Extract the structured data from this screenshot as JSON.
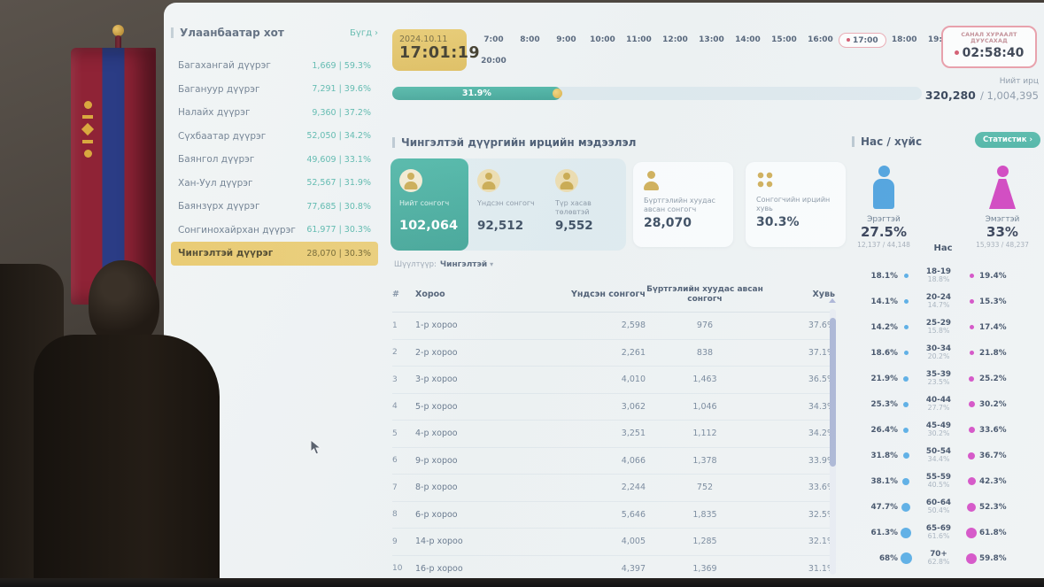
{
  "icons": {
    "chevron_right": "›",
    "dropdown": "▾"
  },
  "colors": {
    "accent_teal": "#45b3a4",
    "gold": "#e4c25f",
    "male_blue": "#4aa0dd",
    "female_pink": "#cf3fbe",
    "alert_red": "#d2556b"
  },
  "sidebar": {
    "title": "Улаанбаатар хот",
    "all_link": "Бүгд",
    "districts": [
      {
        "name": "Багахангай дүүрэг",
        "value": "1,669 | 59.3%"
      },
      {
        "name": "Багануур дүүрэг",
        "value": "7,291 | 39.6%"
      },
      {
        "name": "Налайх дүүрэг",
        "value": "9,360 | 37.2%"
      },
      {
        "name": "Сүхбаатар дүүрэг",
        "value": "52,050 | 34.2%"
      },
      {
        "name": "Баянгол дүүрэг",
        "value": "49,609 | 33.1%"
      },
      {
        "name": "Хан-Уул дүүрэг",
        "value": "52,567 | 31.9%"
      },
      {
        "name": "Баянзүрх дүүрэг",
        "value": "77,685 | 30.8%"
      },
      {
        "name": "Сонгинохайрхан дүүрэг",
        "value": "61,977 | 30.3%"
      },
      {
        "name": "Чингэлтэй дүүрэг",
        "value": "28,070 | 30.3%",
        "selected": true
      }
    ]
  },
  "header": {
    "date": "2024.10.11",
    "time": "17:01:19",
    "countdown_label": "САНАЛ ХУРААЛТ ДУУСАХАД",
    "countdown_value": "02:58:40"
  },
  "timeline": {
    "hours": [
      {
        "label": "7:00"
      },
      {
        "label": "8:00"
      },
      {
        "label": "9:00"
      },
      {
        "label": "10:00"
      },
      {
        "label": "11:00"
      },
      {
        "label": "12:00"
      },
      {
        "label": "13:00"
      },
      {
        "label": "14:00"
      },
      {
        "label": "15:00"
      },
      {
        "label": "16:00"
      },
      {
        "label": "17:00",
        "active": true
      },
      {
        "label": "18:00"
      },
      {
        "label": "19:00"
      },
      {
        "label": "20:00"
      }
    ]
  },
  "progress": {
    "pct": "31.9%"
  },
  "turnout": {
    "label": "Нийт ирц",
    "value": "320,280",
    "total": "/ 1,004,395"
  },
  "section": {
    "title": "Чингэлтэй дүүргийн ирцийн мэдээлэл"
  },
  "stats": {
    "primary": [
      {
        "label": "Нийт сонгогч",
        "value": "102,064",
        "selected": true
      },
      {
        "label": "Үндсэн сонгогч",
        "value": "92,512"
      },
      {
        "label": "Түр хасав төлөвтэй",
        "value": "9,552"
      }
    ],
    "secondary": [
      {
        "label": "Бүртгэлийн хуудас авсан сонгогч",
        "value": "28,070"
      },
      {
        "label": "Сонгогчийн ирцийн хувь",
        "value": "30.3%"
      }
    ]
  },
  "filter": {
    "label": "Шүүлтүүр:",
    "value": "Чингэлтэй"
  },
  "table": {
    "headers": {
      "num": "#",
      "name": "Хороо",
      "main": "Үндсэн сонгогч",
      "taken": "Бүртгэлийн хуудас авсан сонгогч",
      "pct": "Хувь"
    },
    "rows": [
      {
        "num": "1",
        "name": "1-р хороо",
        "main": "2,598",
        "taken": "976",
        "pct": "37.6%"
      },
      {
        "num": "2",
        "name": "2-р хороо",
        "main": "2,261",
        "taken": "838",
        "pct": "37.1%"
      },
      {
        "num": "3",
        "name": "3-р хороо",
        "main": "4,010",
        "taken": "1,463",
        "pct": "36.5%"
      },
      {
        "num": "4",
        "name": "5-р хороо",
        "main": "3,062",
        "taken": "1,046",
        "pct": "34.3%"
      },
      {
        "num": "5",
        "name": "4-р хороо",
        "main": "3,251",
        "taken": "1,112",
        "pct": "34.2%"
      },
      {
        "num": "6",
        "name": "9-р хороо",
        "main": "4,066",
        "taken": "1,378",
        "pct": "33.9%"
      },
      {
        "num": "7",
        "name": "8-р хороо",
        "main": "2,244",
        "taken": "752",
        "pct": "33.6%"
      },
      {
        "num": "8",
        "name": "6-р хороо",
        "main": "5,646",
        "taken": "1,835",
        "pct": "32.5%"
      },
      {
        "num": "9",
        "name": "14-р хороо",
        "main": "4,005",
        "taken": "1,285",
        "pct": "32.1%"
      },
      {
        "num": "10",
        "name": "16-р хороо",
        "main": "4,397",
        "taken": "1,369",
        "pct": "31.1%"
      }
    ]
  },
  "demo": {
    "title": "Нас / хүйс",
    "stats_button": "Статистик",
    "age_label": "Нас",
    "male": {
      "label": "Эрэгтэй",
      "pct": "27.5%",
      "counts": "12,137 / 44,148"
    },
    "female": {
      "label": "Эмэгтэй",
      "pct": "33%",
      "counts": "15,933 / 48,237"
    },
    "ages": [
      {
        "range": "18-19",
        "male": "18.1%",
        "mid": "18.8%",
        "female": "19.4%"
      },
      {
        "range": "20-24",
        "male": "14.1%",
        "mid": "14.7%",
        "female": "15.3%"
      },
      {
        "range": "25-29",
        "male": "14.2%",
        "mid": "15.8%",
        "female": "17.4%"
      },
      {
        "range": "30-34",
        "male": "18.6%",
        "mid": "20.2%",
        "female": "21.8%"
      },
      {
        "range": "35-39",
        "male": "21.9%",
        "mid": "23.5%",
        "female": "25.2%"
      },
      {
        "range": "40-44",
        "male": "25.3%",
        "mid": "27.7%",
        "female": "30.2%"
      },
      {
        "range": "45-49",
        "male": "26.4%",
        "mid": "30.2%",
        "female": "33.6%"
      },
      {
        "range": "50-54",
        "male": "31.8%",
        "mid": "34.4%",
        "female": "36.7%"
      },
      {
        "range": "55-59",
        "male": "38.1%",
        "mid": "40.5%",
        "female": "42.3%"
      },
      {
        "range": "60-64",
        "male": "47.7%",
        "mid": "50.4%",
        "female": "52.3%"
      },
      {
        "range": "65-69",
        "male": "61.3%",
        "mid": "61.6%",
        "female": "61.8%"
      },
      {
        "range": "70+",
        "male": "68%",
        "mid": "62.8%",
        "female": "59.8%"
      }
    ]
  }
}
